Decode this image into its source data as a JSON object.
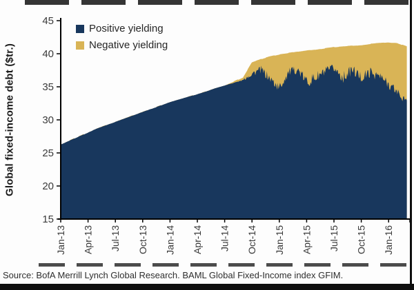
{
  "footer": {
    "source": "Source: BofA Merrill Lynch Global Research. BAML Global Fixed-Income index GFIM."
  },
  "chart_data": {
    "type": "area",
    "stacked": true,
    "title": "",
    "xlabel": "",
    "ylabel": "Global fixed-income debt ($tr.)",
    "ylim": [
      15,
      45
    ],
    "yticks": [
      15,
      20,
      25,
      30,
      35,
      40,
      45
    ],
    "grid": false,
    "legend_position": "top-left-inside",
    "x_unit": "months since Jan-2013",
    "x_ticks": [
      {
        "m": 0,
        "label": "Jan-13"
      },
      {
        "m": 3,
        "label": "Apr-13"
      },
      {
        "m": 6,
        "label": "Jul-13"
      },
      {
        "m": 9,
        "label": "Oct-13"
      },
      {
        "m": 12,
        "label": "Jan-14"
      },
      {
        "m": 15,
        "label": "Apr-14"
      },
      {
        "m": 18,
        "label": "Jul-14"
      },
      {
        "m": 21,
        "label": "Oct-14"
      },
      {
        "m": 24,
        "label": "Jan-15"
      },
      {
        "m": 27,
        "label": "Apr-15"
      },
      {
        "m": 30,
        "label": "Jul-15"
      },
      {
        "m": 33,
        "label": "Oct-15"
      },
      {
        "m": 36,
        "label": "Jan-16"
      }
    ],
    "series": [
      {
        "name": "Positive yielding",
        "color": "#18375d",
        "months": [
          0,
          1,
          2,
          3,
          4,
          5,
          6,
          7,
          8,
          9,
          10,
          11,
          12,
          13,
          14,
          15,
          16,
          17,
          18,
          19,
          20,
          21,
          22,
          23,
          24,
          25,
          26,
          27,
          28,
          29,
          30,
          31,
          32,
          33,
          34,
          35,
          36,
          37,
          38
        ],
        "values": [
          26.3,
          26.9,
          27.5,
          28.1,
          28.7,
          29.2,
          29.7,
          30.2,
          30.7,
          31.2,
          31.7,
          32.2,
          32.7,
          33.1,
          33.5,
          33.9,
          34.3,
          34.8,
          35.2,
          35.6,
          36.0,
          37.0,
          37.6,
          36.2,
          34.8,
          37.2,
          37.6,
          35.8,
          36.4,
          37.2,
          37.8,
          36.4,
          37.6,
          36.4,
          37.2,
          36.6,
          35.4,
          34.2,
          32.6
        ],
        "volatility": [
          0,
          0,
          0,
          0,
          0,
          0,
          0,
          0,
          0,
          0,
          0,
          0,
          0,
          0,
          0,
          0,
          0,
          0,
          0,
          0.05,
          0.1,
          0.5,
          0.6,
          0.7,
          0.8,
          0.7,
          0.6,
          0.9,
          0.9,
          0.8,
          0.7,
          0.9,
          0.8,
          0.9,
          0.8,
          0.8,
          0.7,
          0.8,
          0.6
        ]
      },
      {
        "name": "Negative yielding",
        "color": "#d9b456",
        "months": [
          0,
          1,
          2,
          3,
          4,
          5,
          6,
          7,
          8,
          9,
          10,
          11,
          12,
          13,
          14,
          15,
          16,
          17,
          18,
          19,
          20,
          21,
          22,
          23,
          24,
          25,
          26,
          27,
          28,
          29,
          30,
          31,
          32,
          33,
          34,
          35,
          36,
          37,
          38
        ],
        "values": [
          0,
          0,
          0,
          0,
          0,
          0,
          0,
          0,
          0,
          0,
          0,
          0,
          0,
          0,
          0,
          0,
          0,
          0,
          0,
          0.2,
          0.4,
          1.7,
          1.6,
          3.4,
          5.1,
          2.9,
          2.7,
          4.7,
          4.2,
          3.6,
          3.2,
          4.7,
          3.6,
          4.9,
          4.3,
          5.0,
          6.3,
          7.4,
          8.5
        ]
      }
    ]
  }
}
